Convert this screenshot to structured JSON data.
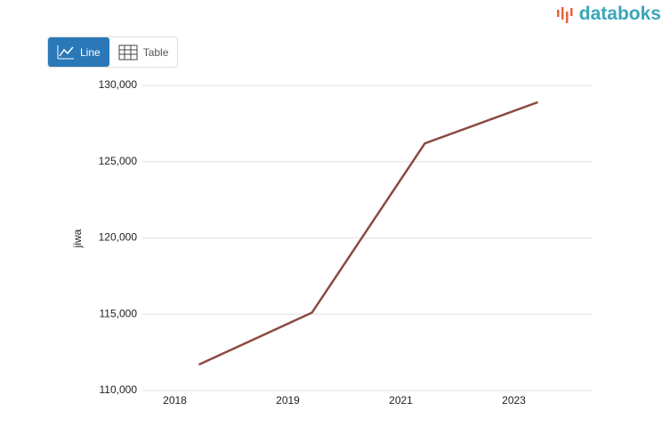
{
  "logo": "databoks",
  "buttons": [
    "Line",
    "Table"
  ],
  "chart_data": {
    "type": "line",
    "y_label": "jiwa",
    "categories": [
      "2018",
      "2019",
      "2021",
      "2023"
    ],
    "series": [
      {
        "name": "jiwa",
        "color": "#8b4a3f",
        "values": [
          111700,
          115100,
          126200,
          128900
        ]
      }
    ],
    "ylim": [
      110000,
      130000
    ],
    "yticks": [
      {
        "value": 110000,
        "label": "110,000"
      },
      {
        "value": 115000,
        "label": "115,000"
      },
      {
        "value": 120000,
        "label": "120,000"
      },
      {
        "value": 125000,
        "label": "125,000"
      },
      {
        "value": 130000,
        "label": "130,000"
      }
    ],
    "grid": true
  }
}
